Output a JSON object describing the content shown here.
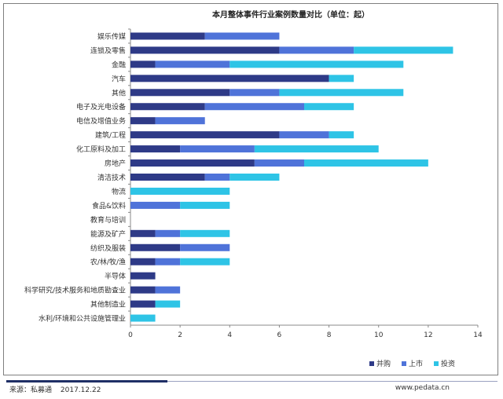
{
  "chart_data": {
    "type": "bar",
    "orientation": "horizontal",
    "stacked": true,
    "title": "本月整体事件行业案例数量对比（单位：起）",
    "categories": [
      "娱乐传媒",
      "连锁及零售",
      "金融",
      "汽车",
      "其他",
      "电子及光电设备",
      "电信及增值业务",
      "建筑/工程",
      "化工原料及加工",
      "房地产",
      "清洁技术",
      "物流",
      "食品&饮料",
      "教育与培训",
      "能源及矿产",
      "纺织及服装",
      "农/林/牧/渔",
      "半导体",
      "科学研究/技术服务和地质勘查业",
      "其他制造业",
      "水利/环境和公共设施管理业"
    ],
    "series": [
      {
        "name": "并购",
        "color": "#2e3a87",
        "values": [
          3,
          6,
          1,
          8,
          4,
          3,
          1,
          6,
          2,
          5,
          3,
          0,
          0,
          0,
          1,
          2,
          1,
          1,
          1,
          1,
          0
        ]
      },
      {
        "name": "上市",
        "color": "#4f73d9",
        "values": [
          3,
          3,
          3,
          0,
          2,
          4,
          2,
          2,
          3,
          2,
          1,
          0,
          2,
          0,
          1,
          2,
          1,
          0,
          1,
          0,
          0
        ]
      },
      {
        "name": "投资",
        "color": "#2ec4e6",
        "values": [
          0,
          4,
          7,
          1,
          5,
          2,
          0,
          1,
          5,
          5,
          2,
          4,
          2,
          0,
          2,
          0,
          2,
          0,
          0,
          1,
          1
        ]
      }
    ],
    "xlim": [
      0,
      14
    ],
    "xticks": [
      "0",
      "2",
      "4",
      "6",
      "8",
      "10",
      "12",
      "14"
    ],
    "grid": false,
    "legend_position": "bottom-right"
  },
  "footer": {
    "source": "来源：私募通",
    "date": "2017.12.22",
    "website": "www.pedata.cn"
  }
}
